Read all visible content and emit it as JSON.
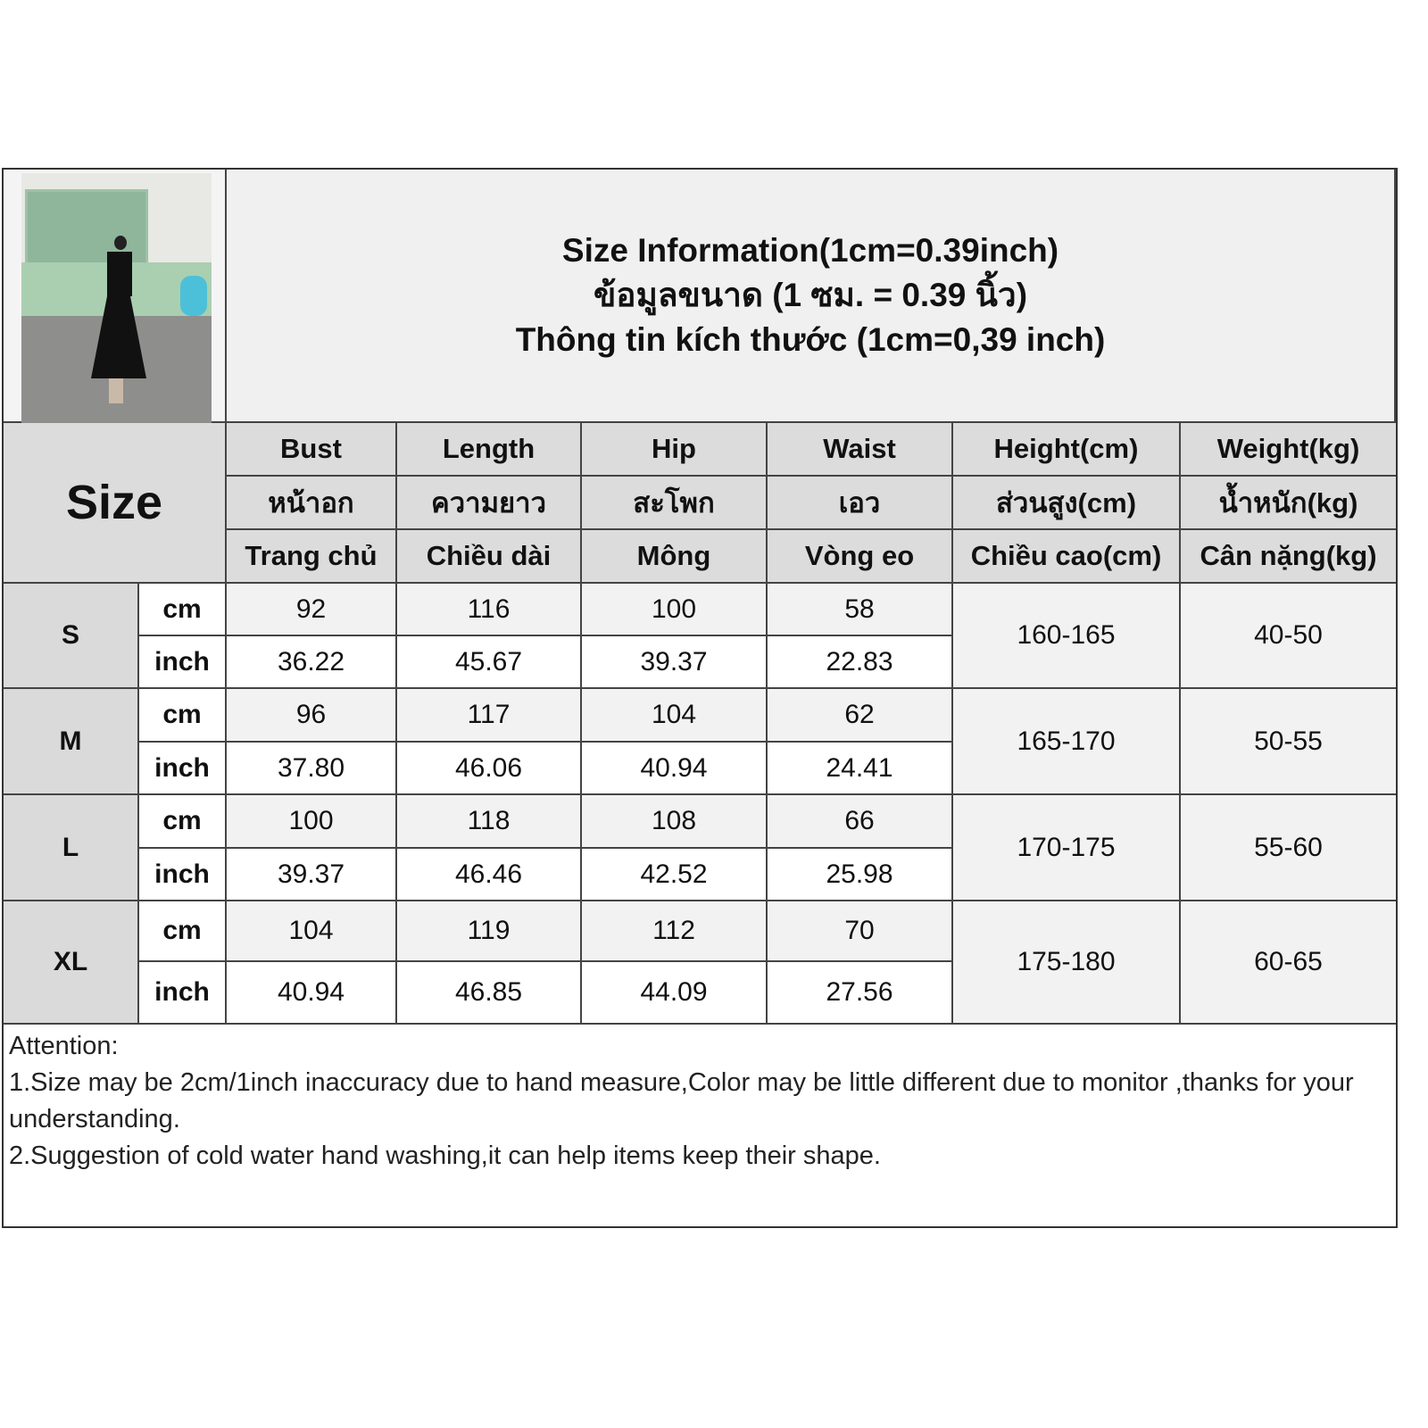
{
  "title": {
    "line1": "Size Information(1cm=0.39inch)",
    "line2": "ข้อมูลขนาด (1 ซม. = 0.39 นิ้ว)",
    "line3": "Thông tin kích thước (1cm=0,39 inch)"
  },
  "size_label": "Size",
  "columns": [
    {
      "en": "Bust",
      "th": "หน้าอก",
      "vi": "Trang chủ"
    },
    {
      "en": "Length",
      "th": "ความยาว",
      "vi": "Chiều dài"
    },
    {
      "en": "Hip",
      "th": "สะโพก",
      "vi": "Mông"
    },
    {
      "en": "Waist",
      "th": "เอว",
      "vi": "Vòng eo"
    },
    {
      "en": "Height(cm)",
      "th": "ส่วนสูง(cm)",
      "vi": "Chiều cao(cm)"
    },
    {
      "en": "Weight(kg)",
      "th": "น้ำหนัก(kg)",
      "vi": "Cân nặng(kg)"
    }
  ],
  "units": {
    "cm": "cm",
    "inch": "inch"
  },
  "rows": [
    {
      "size": "S",
      "cm": [
        "92",
        "116",
        "100",
        "58"
      ],
      "inch": [
        "36.22",
        "45.67",
        "39.37",
        "22.83"
      ],
      "height": "160-165",
      "weight": "40-50"
    },
    {
      "size": "M",
      "cm": [
        "96",
        "117",
        "104",
        "62"
      ],
      "inch": [
        "37.80",
        "46.06",
        "40.94",
        "24.41"
      ],
      "height": "165-170",
      "weight": "50-55"
    },
    {
      "size": "L",
      "cm": [
        "100",
        "118",
        "108",
        "66"
      ],
      "inch": [
        "39.37",
        "46.46",
        "42.52",
        "25.98"
      ],
      "height": "170-175",
      "weight": "55-60"
    },
    {
      "size": "XL",
      "cm": [
        "104",
        "119",
        "112",
        "70"
      ],
      "inch": [
        "40.94",
        "46.85",
        "44.09",
        "27.56"
      ],
      "height": "175-180",
      "weight": "60-65"
    }
  ],
  "attention": {
    "heading": "Attention:",
    "note1": "1.Size may be 2cm/1inch inaccuracy due to hand measure,Color may be little different due to monitor ,thanks for your understanding.",
    "note2": "2.Suggestion of cold water hand washing,it can help items keep their shape."
  }
}
